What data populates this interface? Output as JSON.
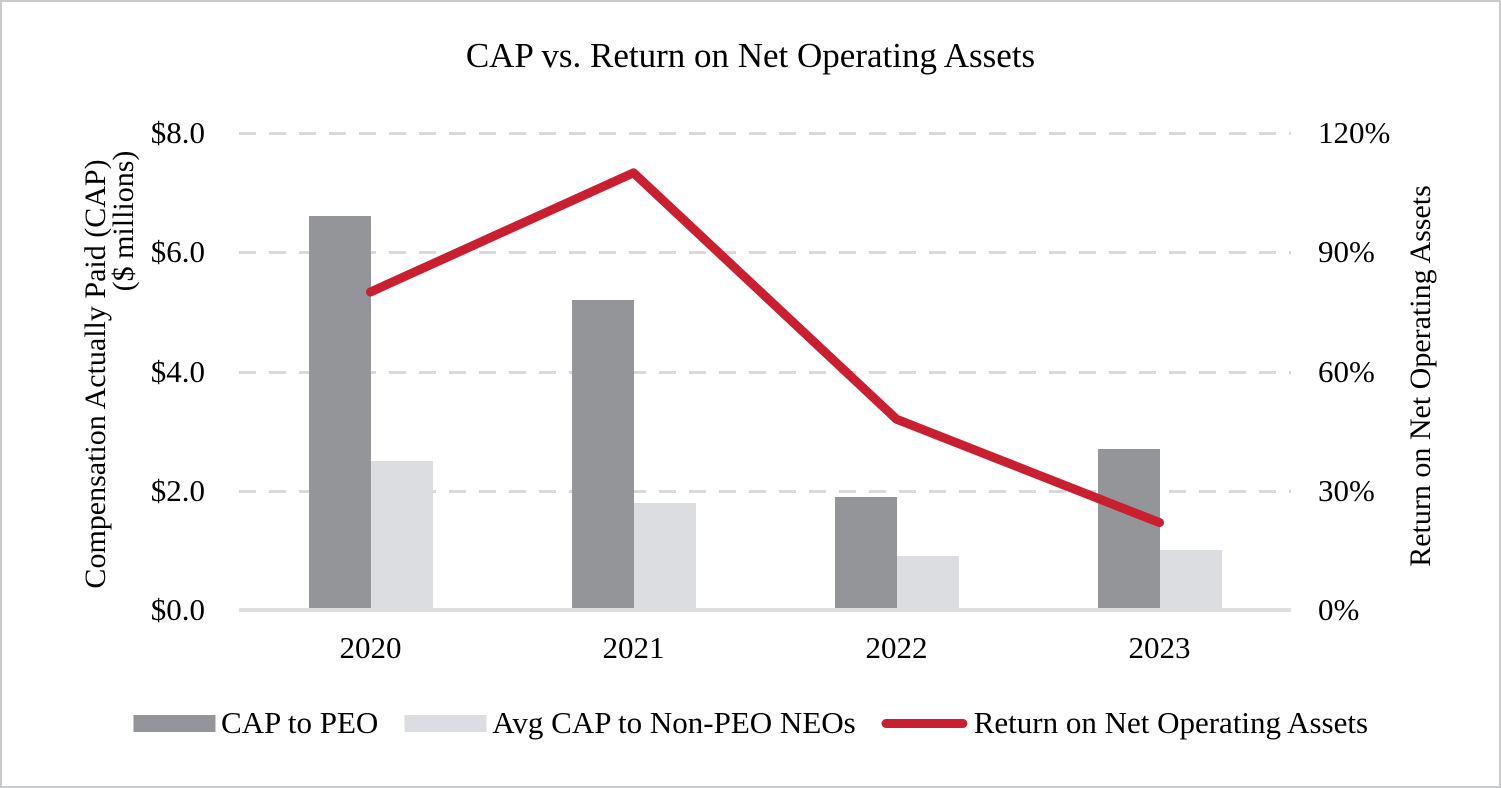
{
  "chart_data": {
    "type": "bar",
    "subtype": "clustered-bar-with-line-combo",
    "title": "CAP vs. Return on Net Operating Assets",
    "categories": [
      "2020",
      "2021",
      "2022",
      "2023"
    ],
    "series": [
      {
        "name": "CAP to PEO",
        "type": "bar",
        "axis": "left",
        "color": "#939598",
        "values": [
          6.6,
          5.2,
          1.9,
          2.7
        ]
      },
      {
        "name": "Avg CAP to Non-PEO NEOs",
        "type": "bar",
        "axis": "left",
        "color": "#dcdde0",
        "values": [
          2.5,
          1.8,
          0.9,
          1.0
        ]
      },
      {
        "name": "Return on Net Operating Assets",
        "type": "line",
        "axis": "right",
        "color": "#c82031",
        "values": [
          80,
          110,
          48,
          22
        ]
      }
    ],
    "left_axis": {
      "title_lines": [
        "Compensation Actually Paid (CAP)",
        "($ millions)"
      ],
      "tick_labels": [
        "$8.0",
        "$6.0",
        "$4.0",
        "$2.0",
        "$0.0"
      ],
      "tick_values": [
        8,
        6,
        4,
        2,
        0
      ],
      "range": [
        0,
        8
      ]
    },
    "right_axis": {
      "title": "Return on Net Operating Assets",
      "tick_labels": [
        "120%",
        "90%",
        "60%",
        "30%",
        "0%"
      ],
      "tick_values": [
        120,
        90,
        60,
        30,
        0
      ],
      "range": [
        0,
        120
      ]
    },
    "grid": "horizontal-dashed",
    "grid_color": "#d9d9d9",
    "legend_position": "bottom",
    "legend": [
      "CAP to PEO",
      "Avg CAP to Non-PEO NEOs",
      "Return on Net Operating Assets"
    ]
  }
}
